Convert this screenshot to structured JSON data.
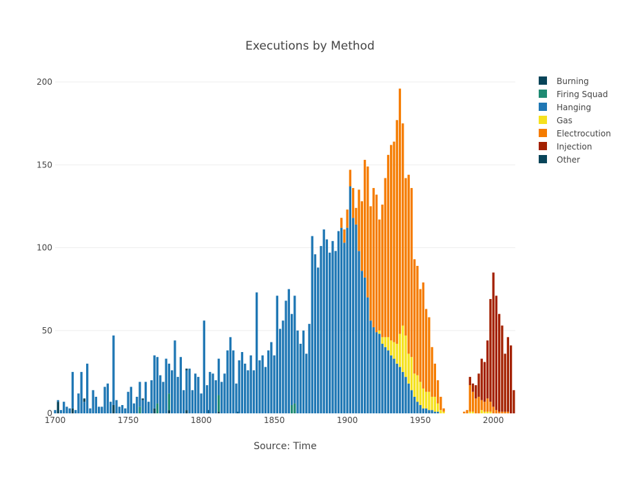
{
  "chart_data": {
    "type": "bar",
    "barmode": "stack",
    "title": "Executions by Method",
    "xlabel": "Source: Time",
    "ylabel": "",
    "xlim": [
      1700,
      2015
    ],
    "ylim": [
      0,
      200
    ],
    "x_ticks": [
      1700,
      1750,
      1800,
      1850,
      1900,
      1950,
      2000
    ],
    "y_ticks": [
      0,
      50,
      100,
      150,
      200
    ],
    "grid": true,
    "legend_position": "top-right",
    "series": [
      {
        "name": "Burning",
        "color": "#084459",
        "points": [
          {
            "year": 1702,
            "value": 7
          },
          {
            "year": 1712,
            "value": 3
          },
          {
            "year": 1740,
            "value": 5
          },
          {
            "year": 1768,
            "value": 3
          },
          {
            "year": 1778,
            "value": 2
          },
          {
            "year": 1790,
            "value": 2
          },
          {
            "year": 1805,
            "value": 2
          },
          {
            "year": 1812,
            "value": 1
          },
          {
            "year": 1825,
            "value": 1
          }
        ]
      },
      {
        "name": "Firing Squad",
        "color": "#1e8a72",
        "points": [
          {
            "year": 1758,
            "value": 4
          },
          {
            "year": 1770,
            "value": 6
          },
          {
            "year": 1778,
            "value": 10
          },
          {
            "year": 1812,
            "value": 10
          },
          {
            "year": 1862,
            "value": 5
          },
          {
            "year": 1864,
            "value": 6
          }
        ]
      },
      {
        "name": "Hanging",
        "color": "#1f77b4",
        "points": [
          {
            "year": 1700,
            "value": 2
          },
          {
            "year": 1702,
            "value": 1
          },
          {
            "year": 1704,
            "value": 2
          },
          {
            "year": 1706,
            "value": 7
          },
          {
            "year": 1708,
            "value": 4
          },
          {
            "year": 1710,
            "value": 3
          },
          {
            "year": 1712,
            "value": 22
          },
          {
            "year": 1714,
            "value": 2
          },
          {
            "year": 1716,
            "value": 12
          },
          {
            "year": 1718,
            "value": 25
          },
          {
            "year": 1720,
            "value": 7
          },
          {
            "year": 1722,
            "value": 30
          },
          {
            "year": 1724,
            "value": 3
          },
          {
            "year": 1726,
            "value": 14
          },
          {
            "year": 1728,
            "value": 10
          },
          {
            "year": 1730,
            "value": 4
          },
          {
            "year": 1732,
            "value": 4
          },
          {
            "year": 1734,
            "value": 16
          },
          {
            "year": 1736,
            "value": 18
          },
          {
            "year": 1738,
            "value": 7
          },
          {
            "year": 1740,
            "value": 42
          },
          {
            "year": 1742,
            "value": 8
          },
          {
            "year": 1744,
            "value": 4
          },
          {
            "year": 1746,
            "value": 5
          },
          {
            "year": 1748,
            "value": 3
          },
          {
            "year": 1750,
            "value": 13
          },
          {
            "year": 1752,
            "value": 16
          },
          {
            "year": 1754,
            "value": 6
          },
          {
            "year": 1756,
            "value": 10
          },
          {
            "year": 1758,
            "value": 15
          },
          {
            "year": 1760,
            "value": 8
          },
          {
            "year": 1762,
            "value": 19
          },
          {
            "year": 1764,
            "value": 7
          },
          {
            "year": 1766,
            "value": 20
          },
          {
            "year": 1768,
            "value": 32
          },
          {
            "year": 1770,
            "value": 28
          },
          {
            "year": 1772,
            "value": 23
          },
          {
            "year": 1774,
            "value": 19
          },
          {
            "year": 1776,
            "value": 33
          },
          {
            "year": 1778,
            "value": 18
          },
          {
            "year": 1780,
            "value": 26
          },
          {
            "year": 1782,
            "value": 44
          },
          {
            "year": 1784,
            "value": 22
          },
          {
            "year": 1786,
            "value": 34
          },
          {
            "year": 1788,
            "value": 14
          },
          {
            "year": 1790,
            "value": 24
          },
          {
            "year": 1792,
            "value": 27
          },
          {
            "year": 1794,
            "value": 14
          },
          {
            "year": 1796,
            "value": 24
          },
          {
            "year": 1798,
            "value": 22
          },
          {
            "year": 1800,
            "value": 12
          },
          {
            "year": 1802,
            "value": 56
          },
          {
            "year": 1804,
            "value": 17
          },
          {
            "year": 1806,
            "value": 25
          },
          {
            "year": 1808,
            "value": 24
          },
          {
            "year": 1810,
            "value": 20
          },
          {
            "year": 1812,
            "value": 22
          },
          {
            "year": 1814,
            "value": 19
          },
          {
            "year": 1816,
            "value": 24
          },
          {
            "year": 1818,
            "value": 38
          },
          {
            "year": 1820,
            "value": 46
          },
          {
            "year": 1822,
            "value": 38
          },
          {
            "year": 1824,
            "value": 18
          },
          {
            "year": 1826,
            "value": 32
          },
          {
            "year": 1828,
            "value": 37
          },
          {
            "year": 1830,
            "value": 30
          },
          {
            "year": 1832,
            "value": 26
          },
          {
            "year": 1834,
            "value": 35
          },
          {
            "year": 1836,
            "value": 26
          },
          {
            "year": 1838,
            "value": 73
          },
          {
            "year": 1840,
            "value": 32
          },
          {
            "year": 1842,
            "value": 35
          },
          {
            "year": 1844,
            "value": 28
          },
          {
            "year": 1846,
            "value": 38
          },
          {
            "year": 1848,
            "value": 43
          },
          {
            "year": 1850,
            "value": 35
          },
          {
            "year": 1852,
            "value": 71
          },
          {
            "year": 1854,
            "value": 51
          },
          {
            "year": 1856,
            "value": 56
          },
          {
            "year": 1858,
            "value": 68
          },
          {
            "year": 1860,
            "value": 75
          },
          {
            "year": 1862,
            "value": 55
          },
          {
            "year": 1864,
            "value": 65
          },
          {
            "year": 1866,
            "value": 50
          },
          {
            "year": 1868,
            "value": 42
          },
          {
            "year": 1870,
            "value": 50
          },
          {
            "year": 1872,
            "value": 36
          },
          {
            "year": 1874,
            "value": 54
          },
          {
            "year": 1876,
            "value": 107
          },
          {
            "year": 1878,
            "value": 96
          },
          {
            "year": 1880,
            "value": 88
          },
          {
            "year": 1882,
            "value": 101
          },
          {
            "year": 1884,
            "value": 111
          },
          {
            "year": 1886,
            "value": 105
          },
          {
            "year": 1888,
            "value": 97
          },
          {
            "year": 1890,
            "value": 104
          },
          {
            "year": 1892,
            "value": 98
          },
          {
            "year": 1894,
            "value": 110
          },
          {
            "year": 1896,
            "value": 112
          },
          {
            "year": 1898,
            "value": 103
          },
          {
            "year": 1900,
            "value": 112
          },
          {
            "year": 1902,
            "value": 137
          },
          {
            "year": 1904,
            "value": 118
          },
          {
            "year": 1906,
            "value": 114
          },
          {
            "year": 1908,
            "value": 98
          },
          {
            "year": 1910,
            "value": 86
          },
          {
            "year": 1912,
            "value": 82
          },
          {
            "year": 1914,
            "value": 70
          },
          {
            "year": 1916,
            "value": 56
          },
          {
            "year": 1918,
            "value": 52
          },
          {
            "year": 1920,
            "value": 49
          },
          {
            "year": 1922,
            "value": 48
          },
          {
            "year": 1924,
            "value": 42
          },
          {
            "year": 1926,
            "value": 40
          },
          {
            "year": 1928,
            "value": 38
          },
          {
            "year": 1930,
            "value": 35
          },
          {
            "year": 1932,
            "value": 33
          },
          {
            "year": 1934,
            "value": 30
          },
          {
            "year": 1936,
            "value": 28
          },
          {
            "year": 1938,
            "value": 25
          },
          {
            "year": 1940,
            "value": 22
          },
          {
            "year": 1942,
            "value": 18
          },
          {
            "year": 1944,
            "value": 14
          },
          {
            "year": 1946,
            "value": 10
          },
          {
            "year": 1948,
            "value": 7
          },
          {
            "year": 1950,
            "value": 5
          },
          {
            "year": 1952,
            "value": 3
          },
          {
            "year": 1954,
            "value": 3
          },
          {
            "year": 1956,
            "value": 2
          },
          {
            "year": 1958,
            "value": 2
          },
          {
            "year": 1960,
            "value": 1
          },
          {
            "year": 1962,
            "value": 1
          }
        ]
      },
      {
        "name": "Gas",
        "color": "#f5e11e",
        "points": [
          {
            "year": 1922,
            "value": 2
          },
          {
            "year": 1924,
            "value": 4
          },
          {
            "year": 1926,
            "value": 6
          },
          {
            "year": 1928,
            "value": 8
          },
          {
            "year": 1930,
            "value": 9
          },
          {
            "year": 1932,
            "value": 10
          },
          {
            "year": 1934,
            "value": 12
          },
          {
            "year": 1936,
            "value": 20
          },
          {
            "year": 1938,
            "value": 28
          },
          {
            "year": 1940,
            "value": 25
          },
          {
            "year": 1942,
            "value": 18
          },
          {
            "year": 1944,
            "value": 20
          },
          {
            "year": 1946,
            "value": 14
          },
          {
            "year": 1948,
            "value": 16
          },
          {
            "year": 1950,
            "value": 14
          },
          {
            "year": 1952,
            "value": 12
          },
          {
            "year": 1954,
            "value": 10
          },
          {
            "year": 1956,
            "value": 11
          },
          {
            "year": 1958,
            "value": 8
          },
          {
            "year": 1960,
            "value": 9
          },
          {
            "year": 1962,
            "value": 5
          },
          {
            "year": 1964,
            "value": 2
          },
          {
            "year": 1966,
            "value": 1
          },
          {
            "year": 1984,
            "value": 1
          },
          {
            "year": 1986,
            "value": 1
          },
          {
            "year": 1992,
            "value": 2
          },
          {
            "year": 1994,
            "value": 1
          },
          {
            "year": 1996,
            "value": 1
          },
          {
            "year": 1998,
            "value": 1
          }
        ]
      },
      {
        "name": "Electrocution",
        "color": "#f57c00",
        "points": [
          {
            "year": 1896,
            "value": 6
          },
          {
            "year": 1898,
            "value": 8
          },
          {
            "year": 1900,
            "value": 11
          },
          {
            "year": 1902,
            "value": 10
          },
          {
            "year": 1904,
            "value": 18
          },
          {
            "year": 1906,
            "value": 10
          },
          {
            "year": 1908,
            "value": 37
          },
          {
            "year": 1910,
            "value": 42
          },
          {
            "year": 1912,
            "value": 71
          },
          {
            "year": 1914,
            "value": 79
          },
          {
            "year": 1916,
            "value": 69
          },
          {
            "year": 1918,
            "value": 84
          },
          {
            "year": 1920,
            "value": 83
          },
          {
            "year": 1922,
            "value": 67
          },
          {
            "year": 1924,
            "value": 80
          },
          {
            "year": 1926,
            "value": 96
          },
          {
            "year": 1928,
            "value": 110
          },
          {
            "year": 1930,
            "value": 118
          },
          {
            "year": 1932,
            "value": 121
          },
          {
            "year": 1934,
            "value": 135
          },
          {
            "year": 1936,
            "value": 148
          },
          {
            "year": 1938,
            "value": 122
          },
          {
            "year": 1940,
            "value": 95
          },
          {
            "year": 1942,
            "value": 108
          },
          {
            "year": 1944,
            "value": 102
          },
          {
            "year": 1946,
            "value": 69
          },
          {
            "year": 1948,
            "value": 66
          },
          {
            "year": 1950,
            "value": 56
          },
          {
            "year": 1952,
            "value": 64
          },
          {
            "year": 1954,
            "value": 50
          },
          {
            "year": 1956,
            "value": 45
          },
          {
            "year": 1958,
            "value": 30
          },
          {
            "year": 1960,
            "value": 20
          },
          {
            "year": 1962,
            "value": 14
          },
          {
            "year": 1964,
            "value": 8
          },
          {
            "year": 1966,
            "value": 2
          },
          {
            "year": 1980,
            "value": 1
          },
          {
            "year": 1982,
            "value": 2
          },
          {
            "year": 1984,
            "value": 16
          },
          {
            "year": 1986,
            "value": 12
          },
          {
            "year": 1988,
            "value": 9
          },
          {
            "year": 1990,
            "value": 10
          },
          {
            "year": 1992,
            "value": 6
          },
          {
            "year": 1994,
            "value": 6
          },
          {
            "year": 1996,
            "value": 8
          },
          {
            "year": 1998,
            "value": 6
          },
          {
            "year": 2000,
            "value": 4
          },
          {
            "year": 2002,
            "value": 2
          },
          {
            "year": 2004,
            "value": 1
          },
          {
            "year": 2006,
            "value": 1
          },
          {
            "year": 2008,
            "value": 1
          },
          {
            "year": 2010,
            "value": 1
          }
        ]
      },
      {
        "name": "Injection",
        "color": "#a32000",
        "points": [
          {
            "year": 1984,
            "value": 5
          },
          {
            "year": 1986,
            "value": 5
          },
          {
            "year": 1988,
            "value": 8
          },
          {
            "year": 1990,
            "value": 14
          },
          {
            "year": 1992,
            "value": 25
          },
          {
            "year": 1994,
            "value": 24
          },
          {
            "year": 1996,
            "value": 35
          },
          {
            "year": 1998,
            "value": 62
          },
          {
            "year": 2000,
            "value": 81
          },
          {
            "year": 2002,
            "value": 69
          },
          {
            "year": 2004,
            "value": 59
          },
          {
            "year": 2006,
            "value": 52
          },
          {
            "year": 2008,
            "value": 35
          },
          {
            "year": 2010,
            "value": 45
          },
          {
            "year": 2012,
            "value": 41
          },
          {
            "year": 2014,
            "value": 14
          }
        ]
      },
      {
        "name": "Other",
        "color": "#084459",
        "points": [
          {
            "year": 1720,
            "value": 2
          },
          {
            "year": 1760,
            "value": 1
          },
          {
            "year": 1790,
            "value": 1
          }
        ]
      }
    ]
  }
}
